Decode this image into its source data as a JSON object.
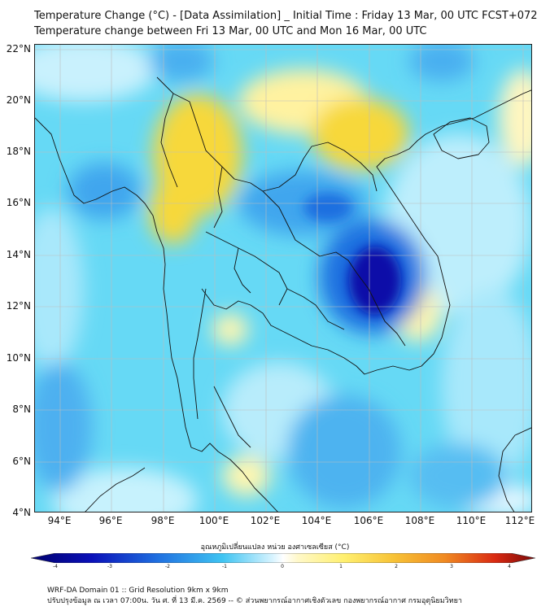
{
  "header": {
    "title_line1": "Temperature Change (°C) - [Data Assimilation] _ Initial Time : Friday 13 Mar, 00 UTC FCST+072",
    "title_line2": "Temperature change between Fri 13 Mar, 00 UTC and Mon 16 Mar, 00 UTC"
  },
  "map": {
    "lat_labels": [
      "22°N",
      "20°N",
      "18°N",
      "16°N",
      "14°N",
      "12°N",
      "10°N",
      "8°N",
      "6°N",
      "4°N"
    ],
    "lon_labels": [
      "94°E",
      "96°E",
      "98°E",
      "100°E",
      "102°E",
      "104°E",
      "106°E",
      "108°E",
      "110°E",
      "112°E"
    ],
    "colors": {
      "background": "#66d9f5",
      "cold_strong": "#0a10a8",
      "cold_mid": "#1f6fe0",
      "cold_light": "#3fa6ee",
      "near_zero": "#e6f8ff",
      "warm_light": "#fff6b0",
      "warm_mid": "#f7d83a",
      "border": "#111111",
      "grid": "#bdbdbd"
    }
  },
  "colorbar": {
    "title": "อุณหภูมิเปลี่ยนแปลง หน่วย องศาเซลเซียส (°C)",
    "ticks": [
      "-4",
      "-3",
      "-2",
      "-1",
      "0",
      "1",
      "2",
      "3",
      "4"
    ]
  },
  "footer": {
    "line1": "WRF-DA Domain 01 :: Grid Resolution 9km x 9km",
    "line2": "ปรับปรุงข้อมูล ณ เวลา 07:00น. วัน ศ. ที่ 13 มี.ค. 2569 -- © ส่วนพยากรณ์อากาศเชิงตัวเลข กองพยากรณ์อากาศ กรมอุตุนิยมวิทยา"
  }
}
